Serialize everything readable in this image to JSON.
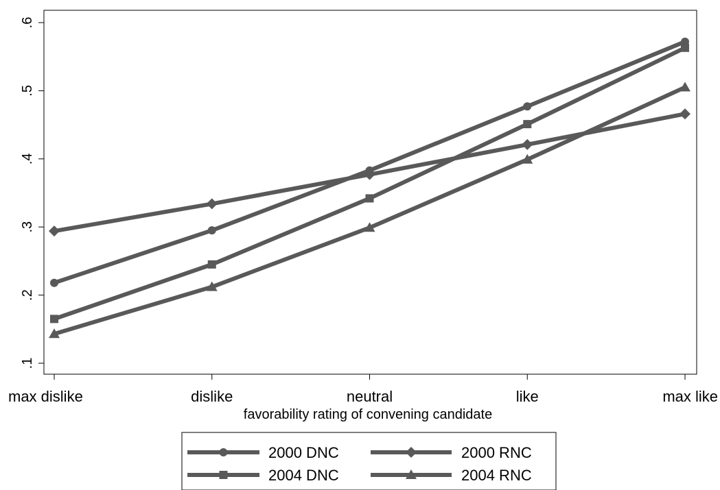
{
  "chart_data": {
    "type": "line",
    "title": "",
    "xlabel": "favorability rating of convening candidate",
    "ylabel": "",
    "categories": [
      "max dislike",
      "dislike",
      "neutral",
      "like",
      "max like"
    ],
    "ylim": [
      0.1,
      0.6
    ],
    "yticks": [
      0.1,
      0.2,
      0.3,
      0.4,
      0.5,
      0.6
    ],
    "ytick_labels": [
      ".1",
      ".2",
      ".3",
      ".4",
      ".5",
      ".6"
    ],
    "grid": false,
    "legend_position": "bottom",
    "line_color": "#595959",
    "series": [
      {
        "name": "2000 DNC",
        "marker": "circle",
        "values": [
          0.218,
          0.295,
          0.383,
          0.477,
          0.572
        ]
      },
      {
        "name": "2000 RNC",
        "marker": "diamond",
        "values": [
          0.294,
          0.334,
          0.377,
          0.421,
          0.466
        ]
      },
      {
        "name": "2004 DNC",
        "marker": "square",
        "values": [
          0.165,
          0.245,
          0.342,
          0.451,
          0.563
        ]
      },
      {
        "name": "2004 RNC",
        "marker": "triangle",
        "values": [
          0.143,
          0.212,
          0.299,
          0.399,
          0.505
        ]
      }
    ]
  }
}
